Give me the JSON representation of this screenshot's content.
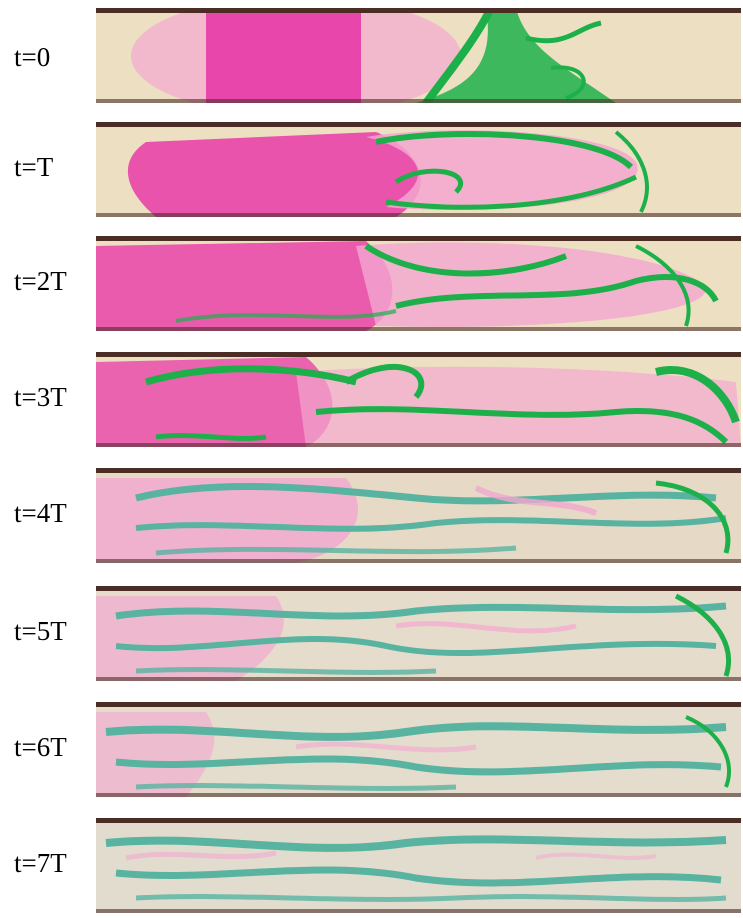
{
  "figure": {
    "colors": {
      "background": "#ede0c2",
      "magenta": "#e83aa8",
      "pink": "#f3a6cf",
      "green": "#1db04a",
      "teal": "#58b3a0",
      "edge": "#4a2e26"
    },
    "frames": [
      {
        "label": "t=0"
      },
      {
        "label": "t=T"
      },
      {
        "label": "t=2T"
      },
      {
        "label": "t=3T"
      },
      {
        "label": "t=4T"
      },
      {
        "label": "t=5T"
      },
      {
        "label": "t=6T"
      },
      {
        "label": "t=7T"
      }
    ]
  }
}
